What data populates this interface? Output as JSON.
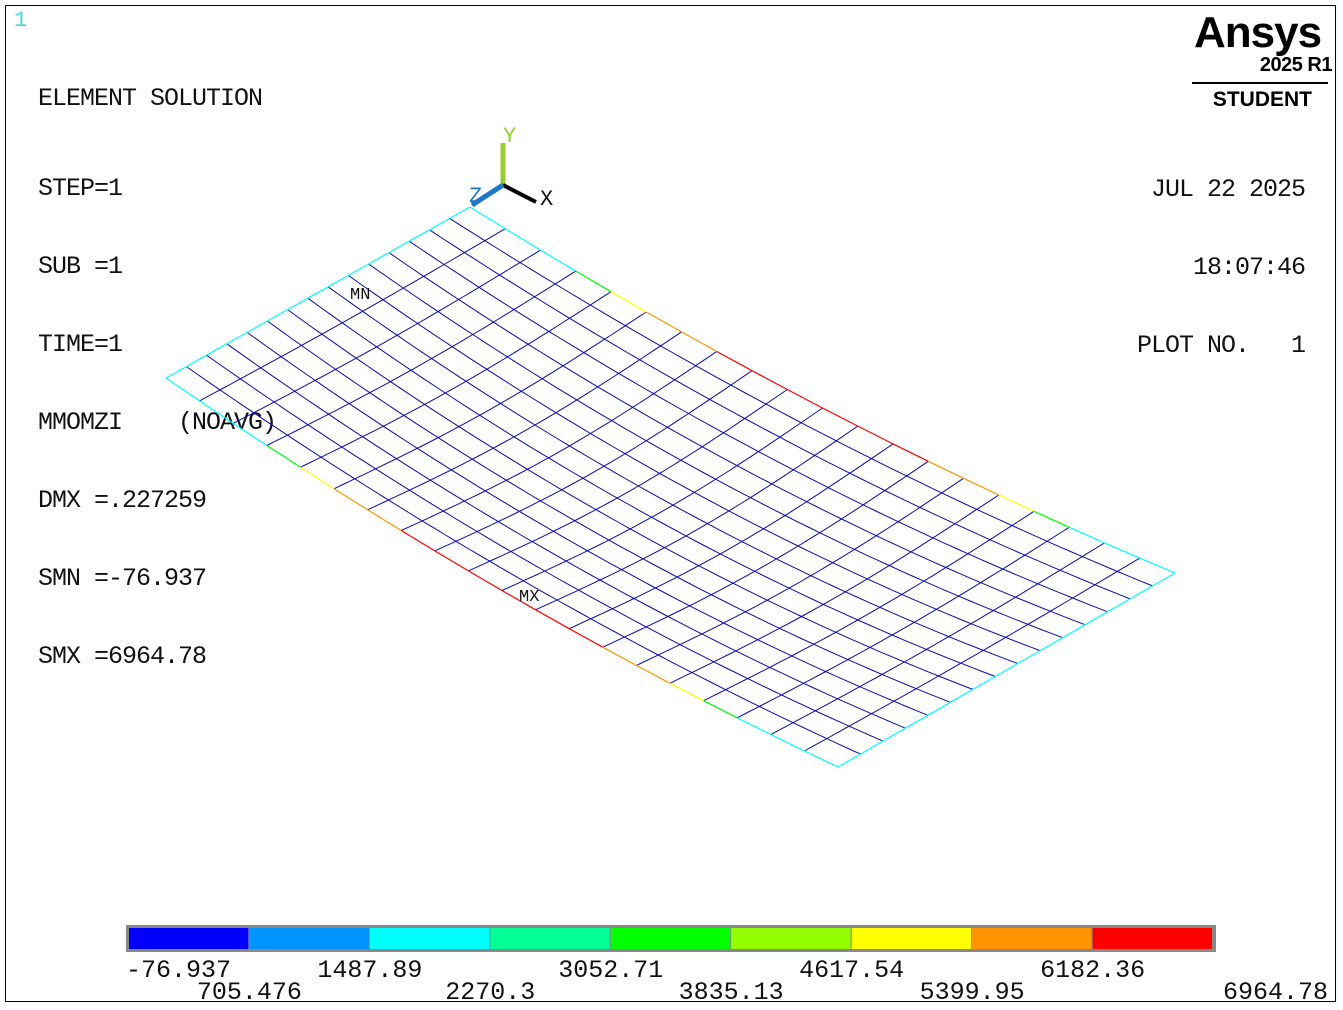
{
  "window_number": "1",
  "info": {
    "title": "ELEMENT SOLUTION",
    "lines": [
      "STEP=1",
      "SUB =1",
      "TIME=1",
      "MMOMZI    (NOAVG)",
      "DMX =.227259",
      "SMN =-76.937",
      "SMX =6964.78"
    ]
  },
  "stamp": {
    "date": "JUL 22 2025",
    "time": "18:07:46",
    "plot": "PLOT NO.   1"
  },
  "logo": {
    "brand": "Ansys",
    "version": "2025 R1",
    "edition": "STUDENT"
  },
  "triad": {
    "y": "Y",
    "x": "X",
    "z": "Z"
  },
  "markers": {
    "min": "MN",
    "max": "MX"
  },
  "legend": {
    "colors": [
      "#0000ff",
      "#0094ff",
      "#00ffff",
      "#00ff94",
      "#00ff00",
      "#94ff00",
      "#ffff00",
      "#ff9400",
      "#ff0000"
    ],
    "labels": [
      "-76.937",
      "705.476",
      "1487.89",
      "2270.3",
      "3052.71",
      "3835.13",
      "4617.54",
      "5399.95",
      "6182.36",
      "6964.78"
    ]
  },
  "mesh": {
    "rows": 15,
    "cols": 20,
    "line_color": "#0a0aa8"
  }
}
